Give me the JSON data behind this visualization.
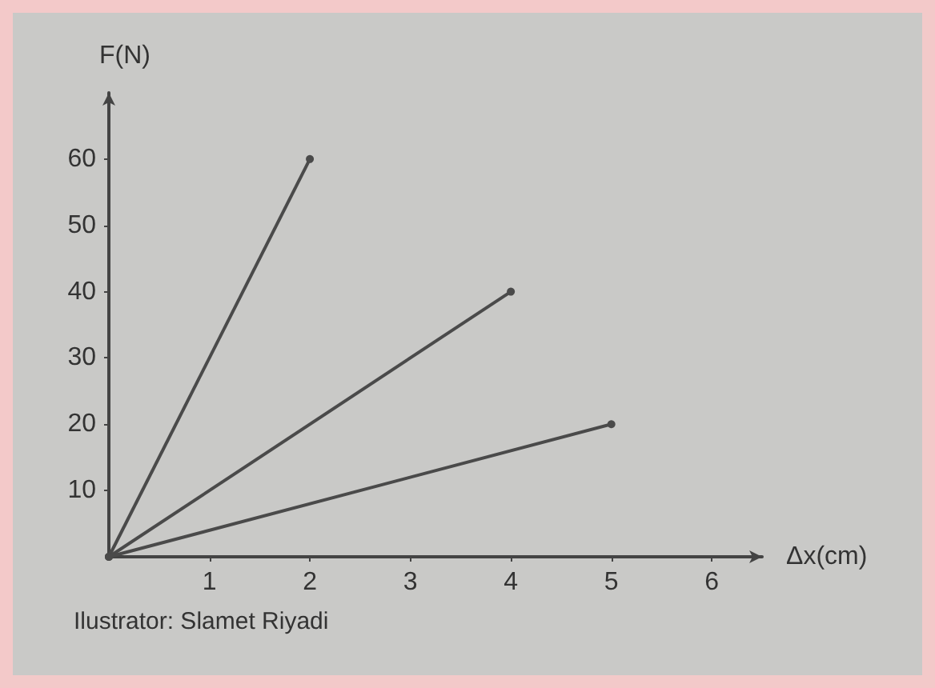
{
  "chart_data": {
    "type": "line",
    "xlabel": "Δx(cm)",
    "ylabel": "F(N)",
    "annotations": [
      "Ilustrator: Slamet Riyadi"
    ],
    "series": [
      {
        "x": [
          0,
          2
        ],
        "values": [
          0,
          60
        ],
        "color": "#4a4a4a"
      },
      {
        "x": [
          0,
          4
        ],
        "values": [
          0,
          40
        ],
        "color": "#4a4a4a"
      },
      {
        "x": [
          0,
          5
        ],
        "values": [
          0,
          20
        ],
        "color": "#4a4a4a"
      }
    ],
    "xlim": [
      0,
      6.5
    ],
    "xticks": [
      1,
      2,
      3,
      4,
      5,
      6
    ],
    "ylim": [
      0,
      70
    ],
    "yticks": [
      10,
      20,
      30,
      40,
      50,
      60
    ],
    "grid": false,
    "marker": "circle",
    "line_style": "solid"
  }
}
